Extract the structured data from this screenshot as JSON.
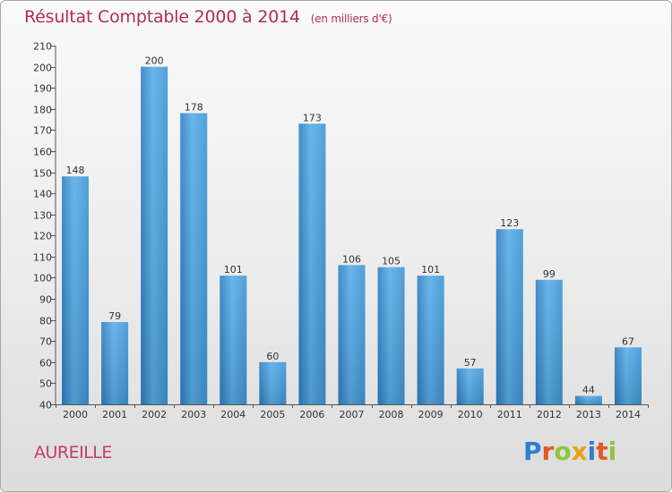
{
  "header": {
    "title": "Résultat Comptable 2000 à 2014",
    "unit_note": "(en milliers d'€)"
  },
  "location": {
    "name": "AUREILLE"
  },
  "logo": {
    "text": "Proxiti"
  },
  "colors": {
    "bar": "#3a93d8",
    "title": "#b02c5b",
    "location": "#c83a6a"
  },
  "chart_data": {
    "type": "bar",
    "title": "Résultat Comptable 2000 à 2014",
    "subtitle": "(en milliers d'€)",
    "xlabel": "",
    "ylabel": "",
    "categories": [
      "2000",
      "2001",
      "2002",
      "2003",
      "2004",
      "2005",
      "2006",
      "2007",
      "2008",
      "2009",
      "2010",
      "2011",
      "2012",
      "2013",
      "2014"
    ],
    "values": [
      148,
      79,
      200,
      178,
      101,
      60,
      173,
      106,
      105,
      101,
      57,
      123,
      99,
      44,
      67
    ],
    "ylim": [
      40,
      210
    ],
    "yticks": [
      40,
      50,
      60,
      70,
      80,
      90,
      100,
      110,
      120,
      130,
      140,
      150,
      160,
      170,
      180,
      190,
      200,
      210
    ],
    "grid": false,
    "legend": "none"
  }
}
